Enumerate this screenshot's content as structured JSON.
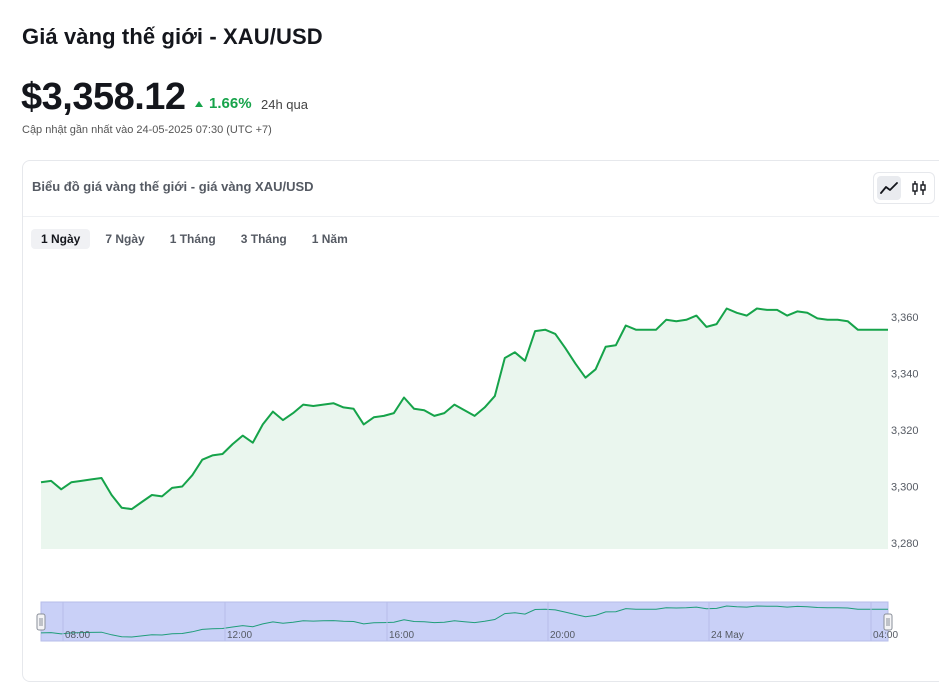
{
  "header": {
    "title": "Giá vàng thế giới - XAU/USD",
    "price": "$3,358.12",
    "change": "1.66%",
    "period": "24h qua",
    "updated": "Cập nhật gần nhất vào 24-05-2025 07:30 (UTC +7)"
  },
  "card": {
    "title": "Biểu đồ giá vàng thế giới - giá vàng XAU/USD",
    "tools": [
      "line-chart-icon",
      "candlestick-icon"
    ],
    "tabs": [
      {
        "label": "1 Ngày",
        "active": true
      },
      {
        "label": "7 Ngày",
        "active": false
      },
      {
        "label": "1 Tháng",
        "active": false
      },
      {
        "label": "3 Tháng",
        "active": false
      },
      {
        "label": "1 Năm",
        "active": false
      }
    ]
  },
  "colors": {
    "line": "#16a34a",
    "area": "#eaf6ee",
    "navigator": "#c9d0f7",
    "accent": "#16a34a"
  },
  "chart_data": {
    "type": "area",
    "title": "",
    "y_ticks": [
      "3,280",
      "3,300",
      "3,320",
      "3,340",
      "3,360"
    ],
    "ylim": [
      3278,
      3372
    ],
    "navigator_x_ticks": [
      "08:00",
      "12:00",
      "16:00",
      "20:00",
      "24 May",
      "04:00"
    ],
    "grid": false,
    "series": [
      {
        "values": [
          3301.5,
          3302,
          3299,
          3301.5,
          3302,
          3302.5,
          3303,
          3297,
          3292.5,
          3292,
          3294.5,
          3297,
          3296.5,
          3299.5,
          3300,
          3304,
          3309.5,
          3311,
          3311.5,
          3315,
          3318,
          3315.5,
          3322,
          3326.5,
          3323.5,
          3326,
          3329,
          3328.5,
          3329,
          3329.5,
          3328,
          3327.5,
          3322,
          3324.5,
          3325,
          3326,
          3331.5,
          3327.5,
          3327,
          3325,
          3326,
          3329,
          3327,
          3325,
          3328,
          3332,
          3345.5,
          3347.5,
          3344.5,
          3355,
          3355.5,
          3354,
          3349,
          3343.5,
          3338.5,
          3341.5,
          3349.5,
          3350,
          3357,
          3355.5,
          3355.5,
          3355.5,
          3359,
          3358.5,
          3359,
          3360.5,
          3356.5,
          3357.5,
          3363,
          3361.5,
          3360.5,
          3363,
          3362.5,
          3362.5,
          3360.5,
          3362,
          3361.5,
          3359.5,
          3359,
          3359,
          3358.5,
          3355.5,
          3355.5,
          3355.5,
          3355.5
        ]
      }
    ]
  }
}
